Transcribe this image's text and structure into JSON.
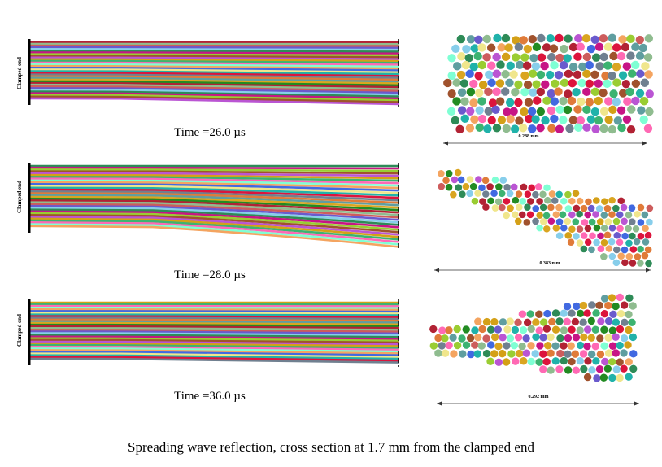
{
  "panels": [
    {
      "time_label": "Time =26.0  µs",
      "clamp_label": "Clamped end",
      "scale_label": "0.288 mm",
      "droop": 0.18
    },
    {
      "time_label": "Time =28.0  µs",
      "clamp_label": "Clamped end",
      "scale_label": "0.383 mm",
      "droop": 0.55
    },
    {
      "time_label": "Time =36.0  µs",
      "clamp_label": "Clamped end",
      "scale_label": "0.292 mm",
      "droop": 0.12
    }
  ],
  "caption": "Spreading wave reflection, cross section at 1.7 mm from the clamped end",
  "colors": [
    "#b22234",
    "#2e8b57",
    "#d4a017",
    "#4169e1",
    "#e07b39",
    "#8fbc8f",
    "#c71585",
    "#3cb371",
    "#f0e68c",
    "#5f9ea0",
    "#cd5c5c",
    "#9acd32",
    "#ff69b4",
    "#20b2aa",
    "#daa520",
    "#6a5acd",
    "#a0522d",
    "#7fffd4",
    "#dc143c",
    "#228b22",
    "#87ceeb",
    "#ba55d3",
    "#f4a460",
    "#708090"
  ]
}
